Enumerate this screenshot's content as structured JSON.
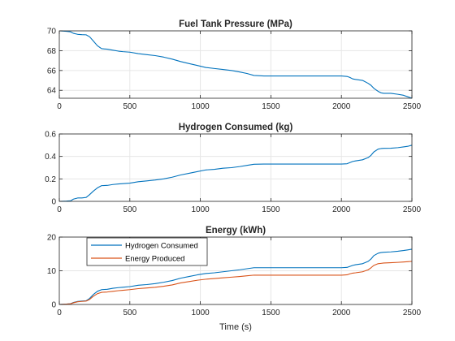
{
  "colors": {
    "series1": "#0072BD",
    "series2": "#D95319",
    "axis": "#262626",
    "grid": "#e6e6e6"
  },
  "chart_data": [
    {
      "type": "line",
      "title": "Fuel Tank Pressure (MPa)",
      "xlabel": "",
      "ylabel": "",
      "xlim": [
        0,
        2500
      ],
      "ylim": [
        63.2,
        70
      ],
      "xticks": [
        0,
        500,
        1000,
        1500,
        2000,
        2500
      ],
      "yticks": [
        64,
        66,
        68,
        70
      ],
      "grid": true,
      "legend": null,
      "series": [
        {
          "x": [
            0,
            50,
            80,
            100,
            130,
            160,
            190,
            215,
            240,
            270,
            300,
            340,
            380,
            420,
            450,
            500,
            560,
            620,
            680,
            740,
            800,
            860,
            920,
            980,
            1040,
            1100,
            1160,
            1220,
            1280,
            1330,
            1380,
            1450,
            1600,
            1800,
            2000,
            2040,
            2060,
            2080,
            2100,
            2150,
            2190,
            2210,
            2230,
            2260,
            2280,
            2300,
            2350,
            2400,
            2440,
            2470,
            2500
          ],
          "y": [
            70.0,
            69.95,
            69.9,
            69.75,
            69.65,
            69.62,
            69.6,
            69.4,
            69.0,
            68.5,
            68.2,
            68.15,
            68.05,
            67.95,
            67.9,
            67.85,
            67.7,
            67.6,
            67.5,
            67.35,
            67.15,
            66.9,
            66.7,
            66.5,
            66.3,
            66.2,
            66.1,
            66.0,
            65.85,
            65.7,
            65.5,
            65.45,
            65.45,
            65.45,
            65.45,
            65.4,
            65.3,
            65.15,
            65.1,
            65.0,
            64.7,
            64.5,
            64.2,
            63.9,
            63.75,
            63.7,
            63.7,
            63.6,
            63.5,
            63.35,
            63.2
          ]
        }
      ]
    },
    {
      "type": "line",
      "title": "Hydrogen Consumed (kg)",
      "xlabel": "",
      "ylabel": "",
      "xlim": [
        0,
        2500
      ],
      "ylim": [
        0,
        0.6
      ],
      "xticks": [
        0,
        500,
        1000,
        1500,
        2000,
        2500
      ],
      "yticks": [
        0,
        0.2,
        0.4,
        0.6
      ],
      "grid": true,
      "legend": null,
      "series": [
        {
          "x": [
            0,
            50,
            80,
            100,
            130,
            160,
            190,
            215,
            240,
            270,
            300,
            340,
            380,
            420,
            450,
            500,
            560,
            620,
            680,
            740,
            800,
            860,
            920,
            980,
            1040,
            1100,
            1160,
            1220,
            1280,
            1330,
            1380,
            1450,
            1600,
            1800,
            2000,
            2040,
            2060,
            2080,
            2100,
            2150,
            2190,
            2210,
            2230,
            2260,
            2280,
            2300,
            2350,
            2400,
            2440,
            2470,
            2500
          ],
          "y": [
            0.0,
            0.002,
            0.005,
            0.02,
            0.03,
            0.03,
            0.035,
            0.06,
            0.09,
            0.12,
            0.14,
            0.142,
            0.15,
            0.155,
            0.158,
            0.162,
            0.175,
            0.182,
            0.19,
            0.2,
            0.215,
            0.235,
            0.25,
            0.265,
            0.28,
            0.285,
            0.295,
            0.3,
            0.31,
            0.32,
            0.33,
            0.332,
            0.332,
            0.332,
            0.332,
            0.335,
            0.345,
            0.355,
            0.36,
            0.37,
            0.39,
            0.41,
            0.44,
            0.465,
            0.47,
            0.472,
            0.473,
            0.478,
            0.485,
            0.49,
            0.5
          ]
        }
      ]
    },
    {
      "type": "line",
      "title": "Energy (kWh)",
      "xlabel": "Time (s)",
      "ylabel": "",
      "xlim": [
        0,
        2500
      ],
      "ylim": [
        0,
        20
      ],
      "xticks": [
        0,
        500,
        1000,
        1500,
        2000,
        2500
      ],
      "yticks": [
        0,
        10,
        20
      ],
      "grid": true,
      "legend": "top-left",
      "series": [
        {
          "name": "Hydrogen Consumed",
          "x": [
            0,
            50,
            80,
            100,
            130,
            160,
            190,
            215,
            240,
            270,
            300,
            340,
            380,
            420,
            450,
            500,
            560,
            620,
            680,
            740,
            800,
            860,
            920,
            980,
            1040,
            1100,
            1160,
            1220,
            1280,
            1330,
            1380,
            1450,
            1600,
            1800,
            2000,
            2040,
            2060,
            2080,
            2100,
            2150,
            2190,
            2210,
            2230,
            2260,
            2280,
            2300,
            2350,
            2400,
            2440,
            2470,
            2500
          ],
          "y": [
            0.0,
            0.1,
            0.2,
            0.6,
            0.9,
            1.0,
            1.1,
            1.8,
            2.9,
            3.9,
            4.4,
            4.5,
            4.8,
            5.0,
            5.1,
            5.3,
            5.7,
            5.9,
            6.2,
            6.6,
            7.1,
            7.8,
            8.3,
            8.8,
            9.2,
            9.4,
            9.7,
            10.0,
            10.3,
            10.6,
            10.9,
            10.9,
            10.9,
            10.9,
            10.9,
            11.0,
            11.3,
            11.6,
            11.8,
            12.1,
            12.8,
            13.5,
            14.5,
            15.2,
            15.4,
            15.5,
            15.6,
            15.8,
            16.0,
            16.2,
            16.4
          ]
        },
        {
          "name": "Energy Produced",
          "x": [
            0,
            50,
            80,
            100,
            130,
            160,
            190,
            215,
            240,
            270,
            300,
            340,
            380,
            420,
            450,
            500,
            560,
            620,
            680,
            740,
            800,
            860,
            920,
            980,
            1040,
            1100,
            1160,
            1220,
            1280,
            1330,
            1380,
            1450,
            1600,
            1800,
            2000,
            2040,
            2060,
            2080,
            2100,
            2150,
            2190,
            2210,
            2230,
            2260,
            2280,
            2300,
            2350,
            2400,
            2440,
            2470,
            2500
          ],
          "y": [
            0.0,
            0.1,
            0.2,
            0.5,
            0.8,
            0.9,
            1.0,
            1.5,
            2.4,
            3.2,
            3.6,
            3.7,
            3.9,
            4.1,
            4.2,
            4.4,
            4.7,
            4.9,
            5.1,
            5.4,
            5.8,
            6.4,
            6.8,
            7.2,
            7.5,
            7.7,
            7.9,
            8.1,
            8.3,
            8.5,
            8.7,
            8.7,
            8.7,
            8.7,
            8.7,
            8.8,
            9.1,
            9.3,
            9.4,
            9.7,
            10.3,
            10.9,
            11.6,
            12.1,
            12.2,
            12.3,
            12.4,
            12.5,
            12.6,
            12.7,
            12.8
          ]
        }
      ]
    }
  ]
}
